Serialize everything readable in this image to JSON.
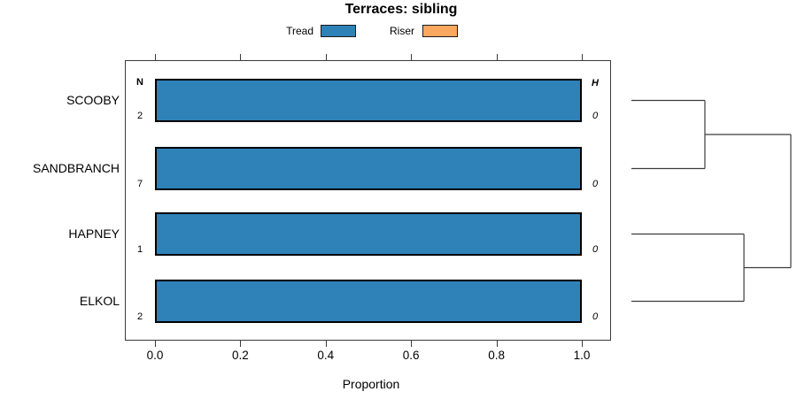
{
  "title": "Terraces: sibling",
  "legend": {
    "items": [
      {
        "label": "Tread",
        "color": "#2f82b8"
      },
      {
        "label": "Riser",
        "color": "#faa75f"
      }
    ]
  },
  "columns": {
    "n_header": "N",
    "h_header": "H"
  },
  "xlabel": "Proportion",
  "chart_data": {
    "type": "bar",
    "orientation": "horizontal",
    "stacked": true,
    "title": "Terraces: sibling",
    "xlabel": "Proportion",
    "xlim": [
      -0.07,
      1.07
    ],
    "x_ticks": [
      {
        "v": 0.0,
        "label": "0.0"
      },
      {
        "v": 0.2,
        "label": "0.2"
      },
      {
        "v": 0.4,
        "label": "0.4"
      },
      {
        "v": 0.6,
        "label": "0.6"
      },
      {
        "v": 0.8,
        "label": "0.8"
      },
      {
        "v": 1.0,
        "label": "1.0"
      }
    ],
    "categories": [
      "SCOOBY",
      "SANDBRANCH",
      "HAPNEY",
      "ELKOL"
    ],
    "series": [
      {
        "name": "Tread",
        "color": "#2f82b8",
        "values": [
          1.0,
          1.0,
          1.0,
          1.0
        ]
      },
      {
        "name": "Riser",
        "color": "#faa75f",
        "values": [
          0.0,
          0.0,
          0.0,
          0.0
        ]
      }
    ],
    "n_values": [
      "2",
      "7",
      "1",
      "2"
    ],
    "h_values": [
      "0",
      "0",
      "0",
      "0"
    ],
    "legend_position": "top",
    "grid": false,
    "dendrogram": {
      "side": "right",
      "leaves": [
        "SCOOBY",
        "SANDBRANCH",
        "HAPNEY",
        "ELKOL"
      ],
      "merges": [
        {
          "a": "SCOOBY",
          "b": "SANDBRANCH",
          "height": 0.461
        },
        {
          "a": "HAPNEY",
          "b": "ELKOL",
          "height": 0.706
        },
        {
          "a": "node0",
          "b": "node1",
          "height": 1.0
        }
      ]
    }
  }
}
